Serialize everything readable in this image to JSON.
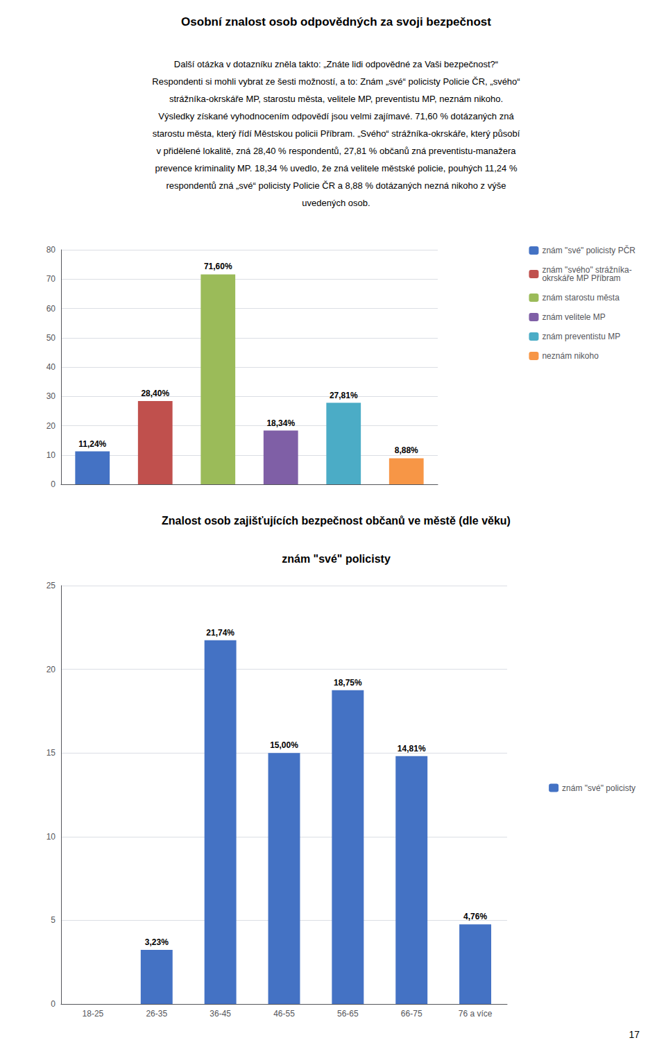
{
  "title": "Osobní znalost osob odpovědných za svoji bezpečnost",
  "text": [
    "Další otázka v dotazníku zněla takto: „Znáte lidi odpovědné za Vaši bezpečnost?“",
    "Respondenti si mohli vybrat ze šesti možností, a to: Znám „své“ policisty Policie ČR, „svého“",
    "strážníka-okrskáře MP, starostu města, velitele MP, preventistu MP, neznám nikoho.",
    "Výsledky získané vyhodnocením odpovědí jsou velmi zajímavé. 71,60 % dotázaných zná",
    "starostu města, který řídí Městskou policii Příbram. „Svého“ strážníka-okrskáře, který působí",
    "v přidělené lokalitě, zná 28,40 % respondentů, 27,81 % občanů zná preventistu-manažera",
    "prevence kriminality MP. 18,34 % uvedlo, že zná velitele městské policie, pouhých 11,24 %",
    "respondentů zná „své“ policisty Policie ČR a 8,88 % dotázaných nezná nikoho z výše",
    "uvedených osob."
  ],
  "page_number": "17",
  "chart_data": [
    {
      "type": "bar",
      "categories": [
        "znám \"své\" policisty PČR",
        "znám \"svého\" strážníka-\nokrskáře MP Příbram",
        "znám starostu města",
        "znám velitele MP",
        "znám preventistu MP",
        "neznám nikoho"
      ],
      "values": [
        11.24,
        28.4,
        71.6,
        18.34,
        27.81,
        8.88
      ],
      "value_labels": [
        "11,24%",
        "28,40%",
        "71,60%",
        "18,34%",
        "27,81%",
        "8,88%"
      ],
      "colors": [
        "#4472c4",
        "#c0504d",
        "#9bbb59",
        "#7f5fa6",
        "#4bacc6",
        "#f79646"
      ],
      "data_labels": true,
      "tick_labels": "y",
      "legend": "upper right",
      "ylim": [
        0,
        80
      ],
      "yticks": [
        0,
        10,
        20,
        30,
        40,
        50,
        60,
        70,
        80
      ],
      "grid": true
    },
    {
      "type": "bar",
      "title": "Znalost osob zajišťujících bezpečnost občanů ve městě (dle věku)",
      "subtitle": "znám \"své\" policisty",
      "categories": [
        "18-25",
        "26-35",
        "36-45",
        "46-55",
        "56-65",
        "66-75",
        "76 a více"
      ],
      "series": [
        {
          "name": "znám \"své\" policisty",
          "color": "#4472c4",
          "values": [
            0,
            3.23,
            21.74,
            15.0,
            18.75,
            14.81,
            4.76
          ],
          "value_labels": [
            null,
            "3,23%",
            "21,74%",
            "15,00%",
            "18,75%",
            "14,81%",
            "4,76%"
          ]
        }
      ],
      "data_labels": true,
      "legend": "right",
      "ylim": [
        0,
        25
      ],
      "yticks": [
        0,
        5,
        10,
        15,
        20,
        25
      ],
      "grid": true
    }
  ]
}
